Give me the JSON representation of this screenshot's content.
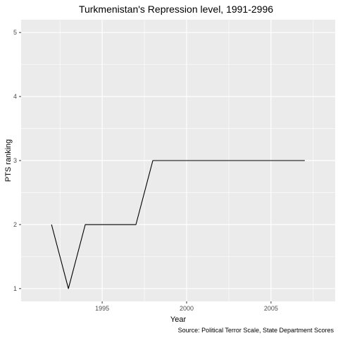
{
  "chart_data": {
    "type": "line",
    "title": "Turkmenistan's Repression level, 1991-2996",
    "xlabel": "Year",
    "ylabel": "PTS ranking",
    "caption": "Source: Political Terror Scale, State Department Scores",
    "xlim": [
      1990.2,
      2008.8
    ],
    "ylim": [
      0.8,
      5.2
    ],
    "x_ticks": [
      1995,
      2000,
      2005
    ],
    "y_ticks": [
      1,
      2,
      3,
      4,
      5
    ],
    "grid": true,
    "colors": {
      "panel": "#ebebeb",
      "grid": "#ffffff",
      "line": "#000000"
    },
    "series": [
      {
        "x": [
          1992,
          1993,
          1994,
          1995,
          1996,
          1997,
          1998,
          1999,
          2000,
          2001,
          2002,
          2003,
          2004,
          2005,
          2006,
          2007
        ],
        "values": [
          2,
          1,
          2,
          2,
          2,
          2,
          3,
          3,
          3,
          3,
          3,
          3,
          3,
          3,
          3,
          3
        ]
      }
    ]
  }
}
